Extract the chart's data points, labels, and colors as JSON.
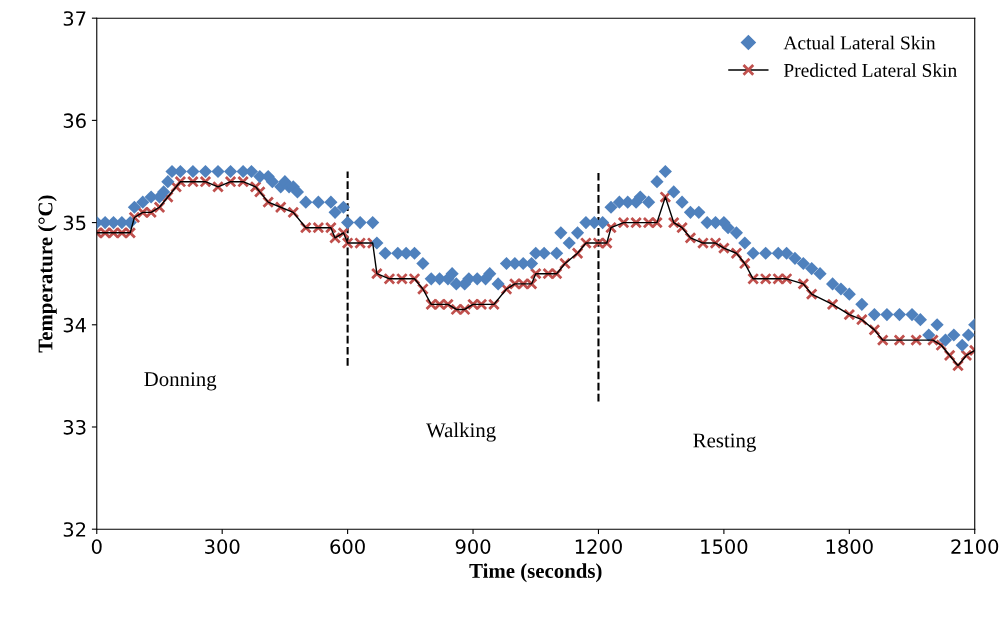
{
  "chart_data": {
    "type": "scatter",
    "xlabel": "Time (seconds)",
    "ylabel": "Temperature (°C)",
    "xlim": [
      0,
      2100
    ],
    "xticks": [
      0,
      300,
      600,
      900,
      1200,
      1500,
      1800,
      2100
    ],
    "ylim": [
      32,
      37
    ],
    "yticks": [
      32,
      33,
      34,
      35,
      36,
      37
    ],
    "grid": false,
    "legend": "top right",
    "series": [
      {
        "name": "Actual Lateral Skin",
        "marker": "diamond",
        "color": "#4f81bd",
        "x": [
          0,
          20,
          40,
          60,
          80,
          90,
          110,
          130,
          150,
          160,
          170,
          180,
          200,
          230,
          260,
          290,
          320,
          350,
          370,
          390,
          410,
          420,
          440,
          450,
          460,
          470,
          480,
          500,
          530,
          560,
          570,
          590,
          600,
          630,
          660,
          670,
          690,
          720,
          740,
          760,
          780,
          800,
          820,
          840,
          850,
          860,
          880,
          890,
          910,
          930,
          940,
          960,
          980,
          1000,
          1020,
          1040,
          1050,
          1070,
          1100,
          1110,
          1130,
          1150,
          1170,
          1190,
          1210,
          1230,
          1250,
          1270,
          1290,
          1300,
          1320,
          1340,
          1360,
          1380,
          1400,
          1420,
          1440,
          1460,
          1480,
          1500,
          1510,
          1530,
          1550,
          1570,
          1600,
          1630,
          1650,
          1670,
          1690,
          1710,
          1730,
          1760,
          1780,
          1800,
          1830,
          1860,
          1890,
          1920,
          1950,
          1970,
          1990,
          2010,
          2030,
          2050,
          2070,
          2085,
          2100
        ],
        "values": [
          35.0,
          35.0,
          35.0,
          35.0,
          35.0,
          35.15,
          35.2,
          35.25,
          35.25,
          35.3,
          35.4,
          35.5,
          35.5,
          35.5,
          35.5,
          35.5,
          35.5,
          35.5,
          35.5,
          35.45,
          35.45,
          35.4,
          35.35,
          35.4,
          35.35,
          35.35,
          35.3,
          35.2,
          35.2,
          35.2,
          35.1,
          35.15,
          35.0,
          35.0,
          35.0,
          34.8,
          34.7,
          34.7,
          34.7,
          34.7,
          34.6,
          34.45,
          34.45,
          34.45,
          34.5,
          34.4,
          34.4,
          34.45,
          34.45,
          34.45,
          34.5,
          34.4,
          34.6,
          34.6,
          34.6,
          34.6,
          34.7,
          34.7,
          34.7,
          34.9,
          34.8,
          34.9,
          35.0,
          35.0,
          35.0,
          35.15,
          35.2,
          35.2,
          35.2,
          35.25,
          35.2,
          35.4,
          35.5,
          35.3,
          35.2,
          35.1,
          35.1,
          35.0,
          35.0,
          35.0,
          34.95,
          34.9,
          34.8,
          34.7,
          34.7,
          34.7,
          34.7,
          34.65,
          34.6,
          34.55,
          34.5,
          34.4,
          34.35,
          34.3,
          34.2,
          34.1,
          34.1,
          34.1,
          34.1,
          34.05,
          33.9,
          34.0,
          33.85,
          33.9,
          33.8,
          33.9,
          34.0
        ]
      },
      {
        "name": "Predicted Lateral Skin",
        "type": "line",
        "marker": "cross",
        "line_style": "solid",
        "color": "#c0504d",
        "x": [
          0,
          20,
          40,
          60,
          80,
          90,
          110,
          130,
          150,
          170,
          190,
          200,
          230,
          260,
          290,
          320,
          350,
          380,
          390,
          410,
          440,
          470,
          500,
          530,
          560,
          570,
          590,
          600,
          630,
          660,
          670,
          700,
          730,
          760,
          780,
          800,
          820,
          840,
          860,
          880,
          900,
          920,
          950,
          980,
          1000,
          1020,
          1040,
          1050,
          1080,
          1100,
          1120,
          1150,
          1170,
          1200,
          1220,
          1230,
          1260,
          1290,
          1320,
          1340,
          1360,
          1380,
          1400,
          1420,
          1450,
          1480,
          1500,
          1530,
          1550,
          1570,
          1600,
          1630,
          1650,
          1690,
          1710,
          1760,
          1800,
          1830,
          1860,
          1880,
          1920,
          1960,
          2000,
          2020,
          2040,
          2060,
          2080,
          2100
        ],
        "values": [
          34.9,
          34.9,
          34.9,
          34.9,
          34.9,
          35.05,
          35.1,
          35.1,
          35.15,
          35.25,
          35.35,
          35.4,
          35.4,
          35.4,
          35.35,
          35.4,
          35.4,
          35.35,
          35.3,
          35.2,
          35.15,
          35.1,
          34.95,
          34.95,
          34.95,
          34.85,
          34.9,
          34.8,
          34.8,
          34.8,
          34.5,
          34.45,
          34.45,
          34.45,
          34.35,
          34.2,
          34.2,
          34.2,
          34.15,
          34.15,
          34.2,
          34.2,
          34.2,
          34.35,
          34.4,
          34.4,
          34.4,
          34.5,
          34.5,
          34.5,
          34.6,
          34.7,
          34.8,
          34.8,
          34.8,
          34.95,
          35.0,
          35.0,
          35.0,
          35.0,
          35.25,
          35.0,
          34.95,
          34.85,
          34.8,
          34.8,
          34.75,
          34.7,
          34.6,
          34.45,
          34.45,
          34.45,
          34.45,
          34.4,
          34.3,
          34.2,
          34.1,
          34.05,
          33.95,
          33.85,
          33.85,
          33.85,
          33.85,
          33.8,
          33.7,
          33.6,
          33.7,
          33.75
        ]
      }
    ],
    "ref_lines": [
      {
        "axis": "x",
        "value": 600,
        "line_style": "dashed",
        "color": "#000000"
      },
      {
        "axis": "x",
        "value": 1200,
        "line_style": "dashed",
        "color": "#000000"
      }
    ],
    "annotations": [
      "Donning",
      "Walking",
      "Resting"
    ]
  }
}
